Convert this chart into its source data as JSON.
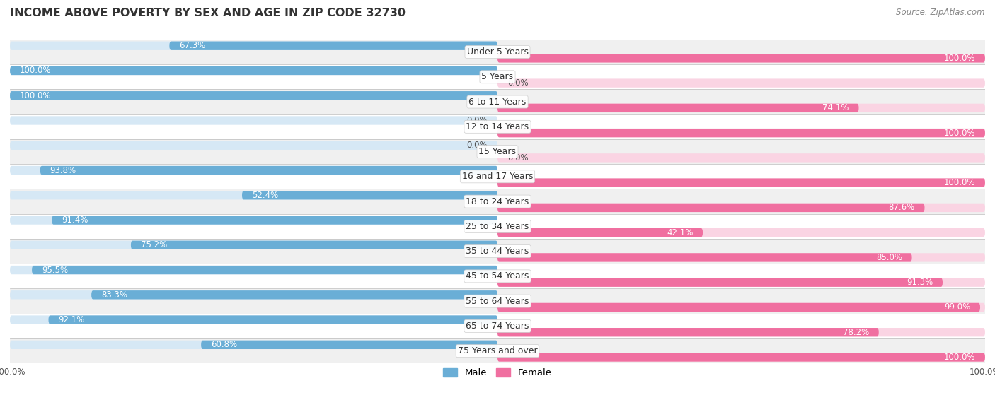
{
  "title": "INCOME ABOVE POVERTY BY SEX AND AGE IN ZIP CODE 32730",
  "source": "Source: ZipAtlas.com",
  "categories": [
    "Under 5 Years",
    "5 Years",
    "6 to 11 Years",
    "12 to 14 Years",
    "15 Years",
    "16 and 17 Years",
    "18 to 24 Years",
    "25 to 34 Years",
    "35 to 44 Years",
    "45 to 54 Years",
    "55 to 64 Years",
    "65 to 74 Years",
    "75 Years and over"
  ],
  "male_values": [
    67.3,
    100.0,
    100.0,
    0.0,
    0.0,
    93.8,
    52.4,
    91.4,
    75.2,
    95.5,
    83.3,
    92.1,
    60.8
  ],
  "female_values": [
    100.0,
    0.0,
    74.1,
    100.0,
    0.0,
    100.0,
    87.6,
    42.1,
    85.0,
    91.3,
    99.0,
    78.2,
    100.0
  ],
  "male_color": "#6AAED6",
  "female_color": "#F06FA0",
  "male_label": "Male",
  "female_label": "Female",
  "bar_background_male": "#D6E8F5",
  "bar_background_female": "#FAD4E3",
  "row_bg_even": "#f0f0f0",
  "row_bg_odd": "#ffffff",
  "title_fontsize": 11.5,
  "source_fontsize": 8.5,
  "value_fontsize": 8.5,
  "cat_fontsize": 9,
  "xlim": [
    -100,
    100
  ]
}
